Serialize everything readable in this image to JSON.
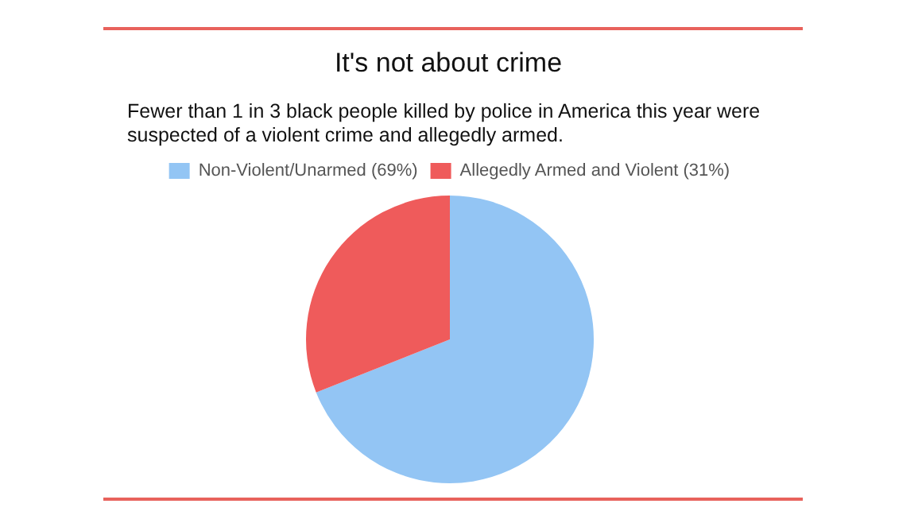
{
  "chart_data": {
    "type": "pie",
    "title": "It's not about crime",
    "subtitle": "Fewer than 1 in 3 black people killed by police in America this year were suspected of a violent crime and allegedly armed.",
    "categories": [
      "Non-Violent/Unarmed (69%)",
      "Allegedly Armed and Violent (31%)"
    ],
    "values": [
      69,
      31
    ],
    "colors": [
      "#93c5f4",
      "#ef5b5b"
    ],
    "legend": "top"
  }
}
